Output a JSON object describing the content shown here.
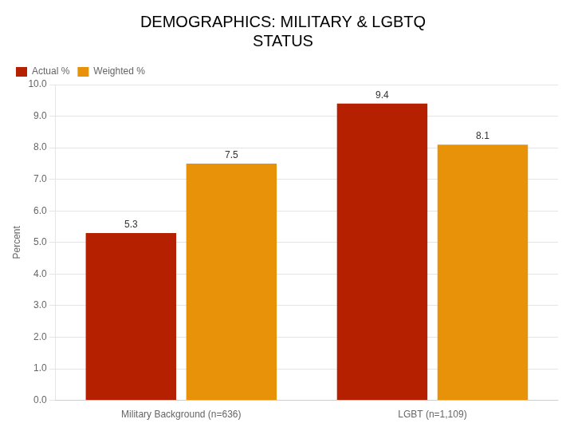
{
  "chart_data": {
    "type": "bar",
    "title": [
      "DEMOGRAPHICS: MILITARY & LGBTQ",
      "STATUS"
    ],
    "categories": [
      "Military Background (n=636)",
      "LGBT (n=1,109)"
    ],
    "series": [
      {
        "name": "Actual %",
        "color": "#B52000",
        "values": [
          5.3,
          9.4
        ]
      },
      {
        "name": "Weighted %",
        "color": "#E8920A",
        "values": [
          7.5,
          8.1
        ]
      }
    ],
    "y_label": "Percent",
    "ylim": [
      0.0,
      10.0
    ],
    "yticks": [
      {
        "value": 0,
        "label": "0.0"
      },
      {
        "value": 1,
        "label": "1.0"
      },
      {
        "value": 2,
        "label": "2.0"
      },
      {
        "value": 3,
        "label": "3.0"
      },
      {
        "value": 4,
        "label": "4.0"
      },
      {
        "value": 5,
        "label": "5.0"
      },
      {
        "value": 6,
        "label": "6.0"
      },
      {
        "value": 7,
        "label": "7.0"
      },
      {
        "value": 8,
        "label": "8.0"
      },
      {
        "value": 9,
        "label": "9.0"
      },
      {
        "value": 10,
        "label": "10.0"
      }
    ],
    "grid": true,
    "legend": "upper left",
    "data_labels": true
  }
}
